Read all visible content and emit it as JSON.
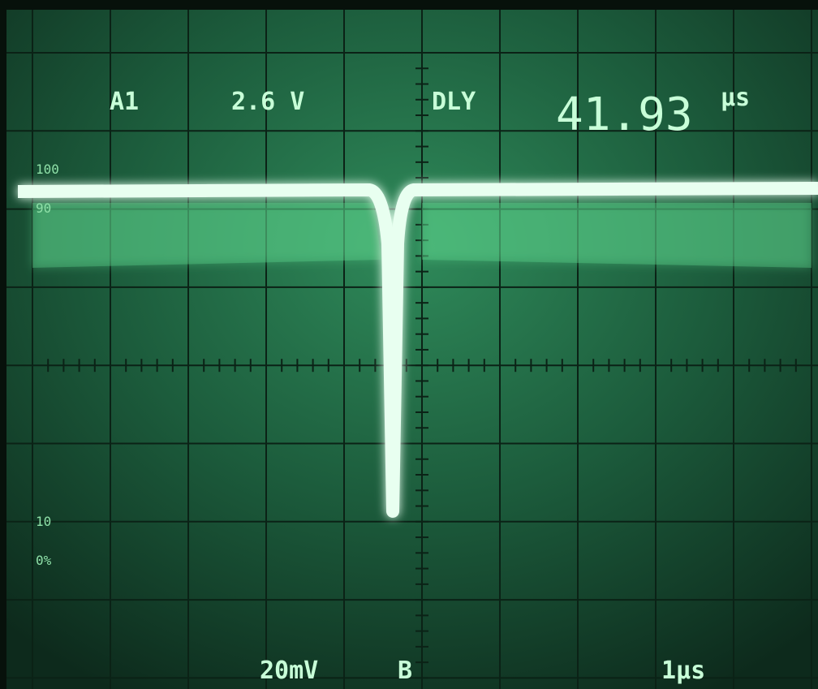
{
  "readout_top": {
    "channel": "A1",
    "volts_per_div": "2.6 V",
    "delay_label": "DLY",
    "delay_value": "41.93",
    "delay_unit": "µs"
  },
  "readout_bottom": {
    "volts": "20mV",
    "mode": "B",
    "time_per_div": "1µs"
  },
  "graticule_labels": [
    "100",
    "90",
    "10",
    "0%"
  ]
}
